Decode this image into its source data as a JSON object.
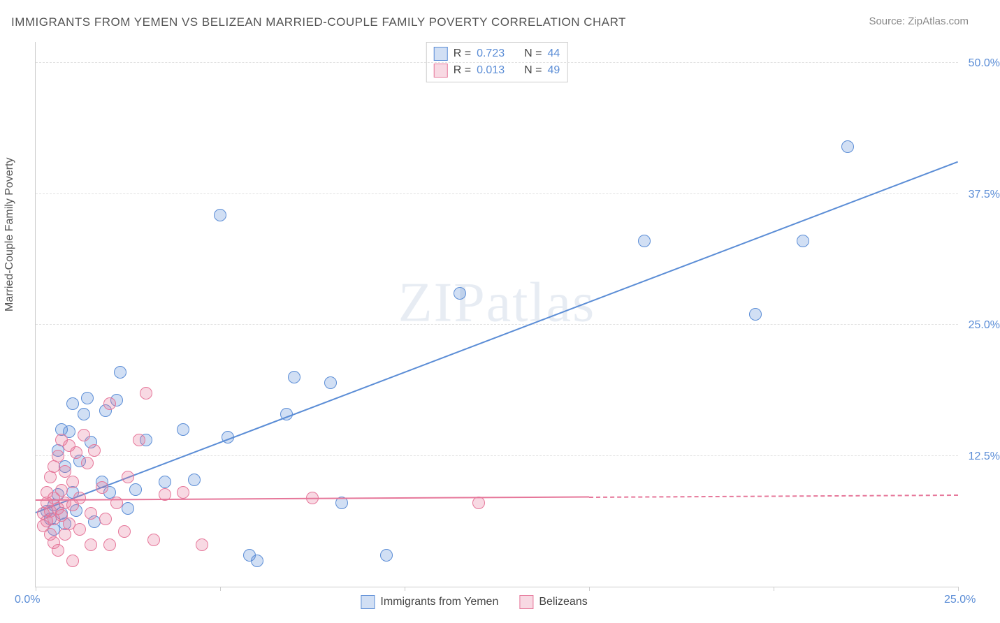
{
  "title": "IMMIGRANTS FROM YEMEN VS BELIZEAN MARRIED-COUPLE FAMILY POVERTY CORRELATION CHART",
  "source_label": "Source: ZipAtlas.com",
  "ylabel": "Married-Couple Family Poverty",
  "watermark": "ZIPatlas",
  "chart": {
    "type": "scatter",
    "xlim": [
      0,
      25
    ],
    "ylim": [
      0,
      52
    ],
    "x_ticks": [
      0,
      5,
      10,
      15,
      20,
      25
    ],
    "x_tick_labels": {
      "0": "0.0%",
      "25": "25.0%"
    },
    "y_ticks": [
      12.5,
      25.0,
      37.5,
      50.0
    ],
    "y_tick_labels": [
      "12.5%",
      "25.0%",
      "37.5%",
      "50.0%"
    ],
    "grid_color": "#e2e2e2",
    "axis_color": "#cccccc",
    "tick_label_color": "#5b8dd6",
    "background_color": "#ffffff",
    "marker_radius": 8,
    "marker_border_width": 1.5,
    "marker_fill_opacity": 0.28,
    "series": [
      {
        "name": "Immigrants from Yemen",
        "key": "yemen",
        "color": "#5b8dd6",
        "fill": "rgba(91,141,214,0.28)",
        "R": "0.723",
        "N": "44",
        "trend": {
          "x0": 0,
          "y0": 7.0,
          "x1": 25,
          "y1": 40.5,
          "solid_to_x": 25
        },
        "points": [
          [
            0.3,
            7.2
          ],
          [
            0.4,
            6.5
          ],
          [
            0.5,
            7.8
          ],
          [
            0.5,
            5.5
          ],
          [
            0.6,
            8.8
          ],
          [
            0.6,
            13.0
          ],
          [
            0.7,
            7.0
          ],
          [
            0.7,
            15.0
          ],
          [
            0.8,
            11.5
          ],
          [
            0.8,
            6.0
          ],
          [
            0.9,
            14.8
          ],
          [
            1.0,
            17.5
          ],
          [
            1.0,
            9.0
          ],
          [
            1.1,
            7.3
          ],
          [
            1.2,
            12.0
          ],
          [
            1.3,
            16.5
          ],
          [
            1.4,
            18.0
          ],
          [
            1.5,
            13.8
          ],
          [
            1.6,
            6.2
          ],
          [
            1.8,
            10.0
          ],
          [
            1.9,
            16.8
          ],
          [
            2.0,
            9.0
          ],
          [
            2.2,
            17.8
          ],
          [
            2.3,
            20.5
          ],
          [
            2.5,
            7.5
          ],
          [
            2.7,
            9.3
          ],
          [
            3.0,
            14.0
          ],
          [
            3.5,
            10.0
          ],
          [
            4.0,
            15.0
          ],
          [
            4.3,
            10.2
          ],
          [
            5.0,
            35.5
          ],
          [
            5.2,
            14.3
          ],
          [
            5.8,
            3.0
          ],
          [
            6.0,
            2.5
          ],
          [
            6.8,
            16.5
          ],
          [
            7.0,
            20.0
          ],
          [
            8.0,
            19.5
          ],
          [
            8.3,
            8.0
          ],
          [
            9.5,
            3.0
          ],
          [
            11.5,
            28.0
          ],
          [
            16.5,
            33.0
          ],
          [
            19.5,
            26.0
          ],
          [
            20.8,
            33.0
          ],
          [
            22.0,
            42.0
          ]
        ]
      },
      {
        "name": "Belizeans",
        "key": "belizeans",
        "color": "#e6779a",
        "fill": "rgba(230,119,154,0.28)",
        "R": "0.013",
        "N": "49",
        "trend": {
          "x0": 0,
          "y0": 8.2,
          "x1": 25,
          "y1": 8.7,
          "solid_to_x": 15
        },
        "points": [
          [
            0.2,
            7.0
          ],
          [
            0.2,
            5.8
          ],
          [
            0.3,
            6.3
          ],
          [
            0.3,
            8.0
          ],
          [
            0.3,
            9.0
          ],
          [
            0.4,
            7.2
          ],
          [
            0.4,
            5.0
          ],
          [
            0.4,
            10.5
          ],
          [
            0.5,
            6.5
          ],
          [
            0.5,
            8.5
          ],
          [
            0.5,
            11.5
          ],
          [
            0.5,
            4.2
          ],
          [
            0.6,
            7.5
          ],
          [
            0.6,
            12.5
          ],
          [
            0.6,
            3.5
          ],
          [
            0.7,
            9.2
          ],
          [
            0.7,
            6.8
          ],
          [
            0.7,
            14.0
          ],
          [
            0.8,
            8.0
          ],
          [
            0.8,
            5.0
          ],
          [
            0.8,
            11.0
          ],
          [
            0.9,
            13.5
          ],
          [
            0.9,
            6.0
          ],
          [
            1.0,
            7.8
          ],
          [
            1.0,
            10.0
          ],
          [
            1.0,
            2.5
          ],
          [
            1.1,
            12.8
          ],
          [
            1.2,
            8.5
          ],
          [
            1.2,
            5.5
          ],
          [
            1.3,
            14.5
          ],
          [
            1.4,
            11.8
          ],
          [
            1.5,
            7.0
          ],
          [
            1.5,
            4.0
          ],
          [
            1.6,
            13.0
          ],
          [
            1.8,
            9.5
          ],
          [
            1.9,
            6.5
          ],
          [
            2.0,
            17.5
          ],
          [
            2.0,
            4.0
          ],
          [
            2.2,
            8.0
          ],
          [
            2.4,
            5.3
          ],
          [
            2.5,
            10.5
          ],
          [
            2.8,
            14.0
          ],
          [
            3.0,
            18.5
          ],
          [
            3.2,
            4.5
          ],
          [
            3.5,
            8.8
          ],
          [
            4.0,
            9.0
          ],
          [
            4.5,
            4.0
          ],
          [
            7.5,
            8.5
          ],
          [
            12.0,
            8.0
          ]
        ]
      }
    ],
    "legend_top": {
      "rows": [
        {
          "swatch_key": "yemen",
          "R_label": "R =",
          "R": "0.723",
          "N_label": "N =",
          "N": "44"
        },
        {
          "swatch_key": "belizeans",
          "R_label": "R =",
          "R": "0.013",
          "N_label": "N =",
          "N": "49"
        }
      ]
    }
  }
}
